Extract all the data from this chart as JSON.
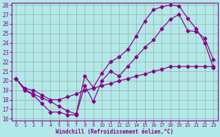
{
  "xlabel": "Windchill (Refroidissement éolien,°C)",
  "xlim": [
    0,
    23
  ],
  "ylim": [
    16,
    28
  ],
  "xticks": [
    0,
    1,
    2,
    3,
    4,
    5,
    6,
    7,
    8,
    9,
    10,
    11,
    12,
    13,
    14,
    15,
    16,
    17,
    18,
    19,
    20,
    21,
    22,
    23
  ],
  "yticks": [
    16,
    17,
    18,
    19,
    20,
    21,
    22,
    23,
    24,
    25,
    26,
    27,
    28
  ],
  "bg_color": "#b2e8e8",
  "grid_color": "#99aaaa",
  "line_color": "#880088",
  "line1_x": [
    0,
    1,
    2,
    3,
    4,
    5,
    6,
    7,
    8,
    9,
    10,
    11,
    12,
    13,
    14,
    15,
    16,
    17,
    18,
    19,
    20,
    21,
    22,
    23
  ],
  "line1_y": [
    20.2,
    19.2,
    19.0,
    18.5,
    18.0,
    18.0,
    18.3,
    18.6,
    19.0,
    19.2,
    19.5,
    19.7,
    20.0,
    20.2,
    20.5,
    20.7,
    21.0,
    21.2,
    21.5,
    21.5,
    21.5,
    21.5,
    21.5,
    21.5
  ],
  "line2_x": [
    0,
    1,
    2,
    3,
    4,
    5,
    6,
    7,
    8,
    9,
    10,
    11,
    12,
    13,
    14,
    15,
    16,
    17,
    18,
    19,
    20,
    21,
    22,
    23
  ],
  "line2_y": [
    20.2,
    19.0,
    18.5,
    17.6,
    16.7,
    16.7,
    16.4,
    16.4,
    19.5,
    17.8,
    20.0,
    21.0,
    20.5,
    21.5,
    22.5,
    23.5,
    24.3,
    25.5,
    26.5,
    27.0,
    25.3,
    25.2,
    24.5,
    22.2
  ],
  "line3_x": [
    0,
    1,
    2,
    3,
    4,
    5,
    6,
    7,
    8,
    9,
    10,
    11,
    12,
    13,
    14,
    15,
    16,
    17,
    18,
    19,
    20,
    21,
    22,
    23
  ],
  "line3_y": [
    20.2,
    19.1,
    18.6,
    18.2,
    17.8,
    17.3,
    16.8,
    16.5,
    20.5,
    19.3,
    20.8,
    22.0,
    22.5,
    23.3,
    24.7,
    26.3,
    27.5,
    27.8,
    28.0,
    27.9,
    26.6,
    25.5,
    24.0,
    21.4
  ]
}
